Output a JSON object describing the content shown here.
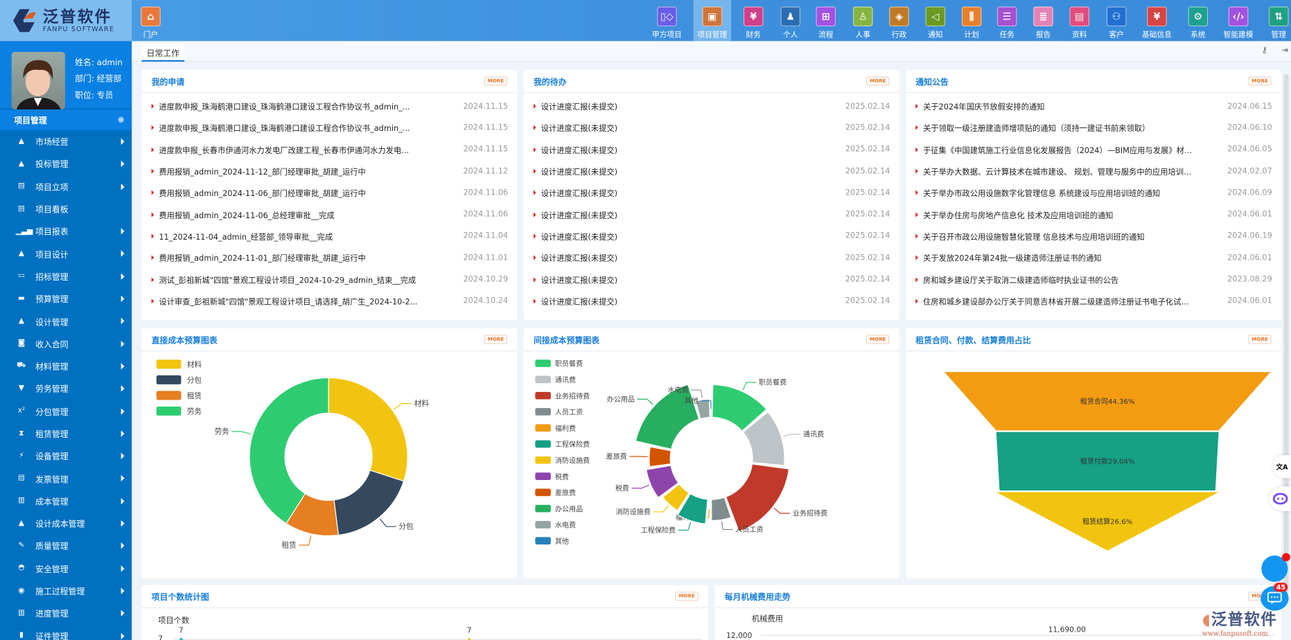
{
  "app": {
    "logo_cn": "泛普软件",
    "logo_en": "FANPU SOFTWARE",
    "home_label": "门户"
  },
  "colors": {
    "header": "#3d8fdc",
    "sidebar": "#0070c0",
    "sidebar_active": "#0a80e2",
    "panel_title": "#1a7fd9",
    "more": "#f07020",
    "list_dot": "#e02020"
  },
  "topnav": [
    {
      "label": "甲方项目",
      "icon": "grid-diamond-icon",
      "color": "#6a5ee8"
    },
    {
      "label": "项目管理",
      "icon": "four-squares-icon",
      "color": "#d0743a",
      "active": true
    },
    {
      "label": "财务",
      "icon": "yen-receipt-icon",
      "color": "#d0408a"
    },
    {
      "label": "个人",
      "icon": "person-icon",
      "color": "#2a6db0"
    },
    {
      "label": "流程",
      "icon": "flowchart-icon",
      "color": "#a252e0"
    },
    {
      "label": "人事",
      "icon": "user-list-icon",
      "color": "#86b443"
    },
    {
      "label": "行政",
      "icon": "layers-icon",
      "color": "#c07a24"
    },
    {
      "label": "通知",
      "icon": "speaker-icon",
      "color": "#6a9a22"
    },
    {
      "label": "计划",
      "icon": "sliders-icon",
      "color": "#e8802a"
    },
    {
      "label": "任务",
      "icon": "task-icon",
      "color": "#a452d0"
    },
    {
      "label": "报告",
      "icon": "report-mic-icon",
      "color": "#e482b4"
    },
    {
      "label": "资料",
      "icon": "document-icon",
      "color": "#e24c7c"
    },
    {
      "label": "客户",
      "icon": "customers-icon",
      "color": "#2070d0"
    },
    {
      "label": "基础信息",
      "icon": "yen-document-icon",
      "color": "#d84444"
    },
    {
      "label": "系统",
      "icon": "gear-icon",
      "color": "#1fa090"
    },
    {
      "label": "智能建模",
      "icon": "code-icon",
      "color": "#a252e0"
    },
    {
      "label": "管理",
      "icon": "sort-list-icon",
      "color": "#1fa080"
    }
  ],
  "user": {
    "name": "姓名: admin",
    "dept": "部门: 经营部",
    "position": "职位: 专员"
  },
  "sidebar": {
    "module": "项目管理",
    "items": [
      {
        "label": "市场经营",
        "icon": "road-icon",
        "arrow": true
      },
      {
        "label": "投标管理",
        "icon": "road-icon",
        "arrow": true
      },
      {
        "label": "项目立项",
        "icon": "comment-icon",
        "arrow": true
      },
      {
        "label": "项目看板",
        "icon": "comment-icon",
        "arrow": false
      },
      {
        "label": "项目报表",
        "icon": "signal-icon",
        "arrow": true
      },
      {
        "label": "项目设计",
        "icon": "road-icon",
        "arrow": true
      },
      {
        "label": "招标管理",
        "icon": "inbox-icon",
        "arrow": true
      },
      {
        "label": "预算管理",
        "icon": "folder-icon",
        "arrow": true
      },
      {
        "label": "设计管理",
        "icon": "road-icon",
        "arrow": true
      },
      {
        "label": "收入合同",
        "icon": "money-icon",
        "arrow": true
      },
      {
        "label": "材料管理",
        "icon": "cart-icon",
        "arrow": true
      },
      {
        "label": "劳务管理",
        "icon": "fox-icon",
        "arrow": true
      },
      {
        "label": "分包管理",
        "icon": "superscript-icon",
        "arrow": true
      },
      {
        "label": "租赁管理",
        "icon": "hourglass-icon",
        "arrow": true
      },
      {
        "label": "设备管理",
        "icon": "plug-icon",
        "arrow": true
      },
      {
        "label": "发票管理",
        "icon": "file-text-icon",
        "arrow": true
      },
      {
        "label": "成本管理",
        "icon": "bar-chart-icon",
        "arrow": true
      },
      {
        "label": "设计成本管理",
        "icon": "road-icon",
        "arrow": true
      },
      {
        "label": "质量管理",
        "icon": "edit-icon",
        "arrow": true
      },
      {
        "label": "安全管理",
        "icon": "helmet-icon",
        "arrow": true
      },
      {
        "label": "施工过程管理",
        "icon": "compass-icon",
        "arrow": true
      },
      {
        "label": "进度管理",
        "icon": "bar-chart-icon",
        "arrow": true
      },
      {
        "label": "证件管理",
        "icon": "certificate-icon",
        "arrow": true
      }
    ]
  },
  "tabs": [
    {
      "label": "日常工作",
      "active": true
    }
  ],
  "more_label": "MORE",
  "panels": {
    "my_requests": {
      "title": "我的申请",
      "rows": [
        {
          "text": "进度款申报_珠海鹤港口建设_珠海鹤港口建设工程合作协议书_admin_...",
          "date": "2024.11.15"
        },
        {
          "text": "进度款申报_珠海鹤港口建设_珠海鹤港口建设工程合作协议书_admin_...",
          "date": "2024.11.15"
        },
        {
          "text": "进度款申报_长春市伊通河水力发电厂改建工程_长春市伊通河水力发电...",
          "date": "2024.11.15"
        },
        {
          "text": "费用报销_admin_2024-11-12_部门经理审批_胡建_运行中",
          "date": "2024.11.12"
        },
        {
          "text": "费用报销_admin_2024-11-06_部门经理审批_胡建_运行中",
          "date": "2024.11.06"
        },
        {
          "text": "费用报销_admin_2024-11-06_总经理审批__完成",
          "date": "2024.11.06"
        },
        {
          "text": "11_2024-11-04_admin_经营部_领导审批__完成",
          "date": "2024.11.04"
        },
        {
          "text": "费用报销_admin_2024-11-01_部门经理审批_胡建_运行中",
          "date": "2024.11.01"
        },
        {
          "text": "测试_彭祖新城\"四馆\"景观工程设计项目_2024-10-29_admin_结束__完成",
          "date": "2024.10.29"
        },
        {
          "text": "设计审查_彭祖新城\"四馆\"景观工程设计项目_请选择_胡广生_2024-10-2...",
          "date": "2024.10.24"
        }
      ]
    },
    "my_todo": {
      "title": "我的待办",
      "rows": [
        {
          "text": "设计进度汇报(未提交)",
          "date": "2025.02.14"
        },
        {
          "text": "设计进度汇报(未提交)",
          "date": "2025.02.14"
        },
        {
          "text": "设计进度汇报(未提交)",
          "date": "2025.02.14"
        },
        {
          "text": "设计进度汇报(未提交)",
          "date": "2025.02.14"
        },
        {
          "text": "设计进度汇报(未提交)",
          "date": "2025.02.14"
        },
        {
          "text": "设计进度汇报(未提交)",
          "date": "2025.02.14"
        },
        {
          "text": "设计进度汇报(未提交)",
          "date": "2025.02.14"
        },
        {
          "text": "设计进度汇报(未提交)",
          "date": "2025.02.14"
        },
        {
          "text": "设计进度汇报(未提交)",
          "date": "2025.02.14"
        },
        {
          "text": "设计进度汇报(未提交)",
          "date": "2025.02.14"
        }
      ]
    },
    "notices": {
      "title": "通知公告",
      "rows": [
        {
          "text": "关于2024年国庆节放假安排的通知",
          "date": "2024.06.15"
        },
        {
          "text": "关于领取一级注册建造师增项贴的通知（须持一建证书前来领取）",
          "date": "2024.06.10"
        },
        {
          "text": "于征集《中国建筑施工行业信息化发展报告（2024）—BIM应用与发展》材料...",
          "date": "2024.06.05"
        },
        {
          "text": "关于举办大数据、云计算技术在城市建设、 规划、管理与服务中的应用培训班...",
          "date": "2024.02.07"
        },
        {
          "text": "关于举办市政公用设施数字化管理信息 系统建设与应用培训班的通知",
          "date": "2024.06.09"
        },
        {
          "text": "关于举办住房与房地产信息化 技术及应用培训班的通知",
          "date": "2024.06.01"
        },
        {
          "text": "关于召开市政公用设施智慧化管理 信息技术与应用培训班的通知",
          "date": "2024.06.19"
        },
        {
          "text": "关于发放2024年第24批一级建造师注册证书的通知",
          "date": "2024.06.01"
        },
        {
          "text": "房和城乡建设厅关于取消二级建造师临时执业证书的公告",
          "date": "2023.08.29"
        },
        {
          "text": "住房和城乡建设部办公厅关于同意吉林省开展二级建造师注册证书电子化试点...",
          "date": "2024.06.01"
        }
      ]
    },
    "direct_cost": {
      "title": "直接成本预算图表"
    },
    "indirect_cost": {
      "title": "间接成本预算图表"
    },
    "lease": {
      "title": "租赁合同、付款、结算费用占比"
    },
    "project_count": {
      "title": "项目个数统计图"
    },
    "machine_cost": {
      "title": "每月机械费用走势"
    }
  },
  "chart_data": [
    {
      "type": "pie",
      "variant": "donut",
      "panel": "direct_cost",
      "categories": [
        "材料",
        "分包",
        "租赁",
        "劳务"
      ],
      "values": [
        30,
        18,
        11,
        41
      ],
      "colors": [
        "#f1c40f",
        "#34495e",
        "#e67e22",
        "#2ecc71"
      ],
      "legend": "top-left"
    },
    {
      "type": "pie",
      "variant": "rose",
      "panel": "indirect_cost",
      "categories": [
        "职员餐费",
        "通讯费",
        "业务招待费",
        "人员工资",
        "福利费",
        "工程保险费",
        "消防设施费",
        "税费",
        "差旅费",
        "办公用品",
        "水电费",
        "其他"
      ],
      "values": [
        48,
        46,
        62,
        20,
        3,
        27,
        20,
        28,
        20,
        60,
        15,
        1
      ],
      "colors": [
        "#2ecc71",
        "#bdc3c7",
        "#c0392b",
        "#7f8c8d",
        "#f39c12",
        "#16a085",
        "#f1c40f",
        "#8e44ad",
        "#d35400",
        "#27ae60",
        "#95a5a6",
        "#2980b9"
      ],
      "legend": "left"
    },
    {
      "type": "funnel",
      "panel": "lease",
      "categories": [
        "租赁合同",
        "租赁付款",
        "租赁结算"
      ],
      "values": [
        44.36,
        29.04,
        26.6
      ],
      "labels": [
        "租赁合同44.36%",
        "租赁付款29.04%",
        "租赁结算26.6%"
      ],
      "colors": [
        "#f39c12",
        "#16a085",
        "#f1c40f"
      ]
    },
    {
      "type": "line",
      "panel": "project_count",
      "ylabel": "项目个数",
      "y_ticks": [
        "7"
      ],
      "data_labels": [
        "7",
        "7"
      ]
    },
    {
      "type": "line",
      "panel": "machine_cost",
      "ylabel": "机械费用",
      "y_ticks": [
        "12,000"
      ],
      "data_labels": [
        "11,690.00"
      ]
    }
  ],
  "floating": {
    "chat_badge": "45",
    "watermark_cn": "泛普软件",
    "watermark_url": "www.fanpusoft.com",
    "translate_icon": "文A"
  }
}
